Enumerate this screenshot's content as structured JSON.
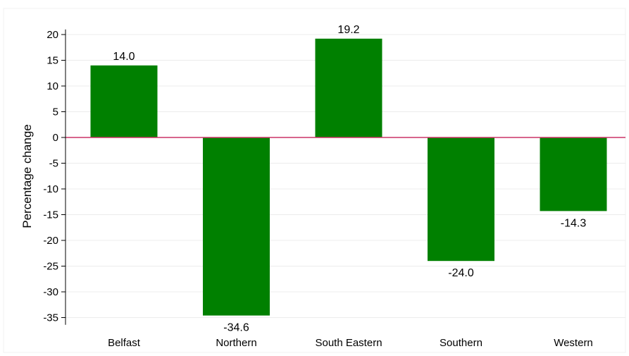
{
  "chart_data": {
    "type": "bar",
    "categories": [
      "Belfast",
      "Northern",
      "South Eastern",
      "Southern",
      "Western"
    ],
    "values": [
      14.0,
      -34.6,
      19.2,
      -24.0,
      -14.3
    ],
    "value_labels": [
      "14.0",
      "-34.6",
      "19.2",
      "-24.0",
      "-14.3"
    ],
    "title": "",
    "xlabel": "",
    "ylabel": "Percentage change",
    "ylim": [
      -36,
      21
    ],
    "yticks": [
      20,
      15,
      10,
      5,
      0,
      -5,
      -10,
      -15,
      -20,
      -25,
      -30,
      -35
    ],
    "ytick_labels": [
      "20",
      "15",
      "10",
      "5",
      "0",
      "-5",
      "-10",
      "-15",
      "-20",
      "-25",
      "-30",
      "-35"
    ],
    "grid": true,
    "bar_color": "#008000",
    "zero_line_color": "#cc3366",
    "grid_color": "#ececec"
  }
}
